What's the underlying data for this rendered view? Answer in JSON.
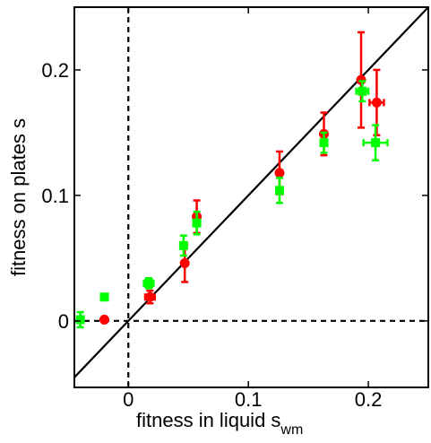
{
  "chart_data": {
    "type": "scatter",
    "xlabel": "fitness in liquid s",
    "xlabel_sub": "wm",
    "ylabel": "fitness on plates s",
    "xlim": [
      -0.045,
      0.25
    ],
    "ylim": [
      -0.053,
      0.25
    ],
    "xticks": [
      0,
      0.1,
      0.2
    ],
    "yticks": [
      0,
      0.1,
      0.2
    ],
    "xtick_labels": [
      "0",
      "0.1",
      "0.2"
    ],
    "ytick_labels": [
      "0",
      "0.1",
      "0.2"
    ],
    "grid": false,
    "reference_lines": [
      {
        "kind": "diagonal",
        "style": "solid"
      },
      {
        "kind": "vertical",
        "at": 0,
        "style": "dashed"
      },
      {
        "kind": "horizontal",
        "at": 0,
        "style": "dashed"
      }
    ],
    "series": [
      {
        "color": "#ff0000",
        "marker": "circle",
        "points": [
          {
            "x": -0.02,
            "y": 0.001,
            "xerr": 0.0,
            "yerr": 0.0
          },
          {
            "x": 0.018,
            "y": 0.019,
            "xerr": 0.004,
            "yerr": 0.005
          },
          {
            "x": 0.047,
            "y": 0.046,
            "xerr": 0.0,
            "yerr": 0.015
          },
          {
            "x": 0.057,
            "y": 0.083,
            "xerr": 0.0,
            "yerr": 0.013
          },
          {
            "x": 0.126,
            "y": 0.118,
            "xerr": 0.0,
            "yerr": 0.017
          },
          {
            "x": 0.163,
            "y": 0.149,
            "xerr": 0.0,
            "yerr": 0.017
          },
          {
            "x": 0.194,
            "y": 0.192,
            "xerr": 0.0,
            "yerr": 0.038
          },
          {
            "x": 0.207,
            "y": 0.174,
            "xerr": 0.006,
            "yerr": 0.026
          }
        ]
      },
      {
        "color": "#00ff00",
        "marker": "square",
        "points": [
          {
            "x": -0.04,
            "y": 0.001,
            "xerr": 0.002,
            "yerr": 0.006
          },
          {
            "x": -0.02,
            "y": 0.019,
            "xerr": 0.0,
            "yerr": 0.0
          },
          {
            "x": 0.017,
            "y": 0.03,
            "xerr": 0.004,
            "yerr": 0.004
          },
          {
            "x": 0.046,
            "y": 0.06,
            "xerr": 0.0,
            "yerr": 0.008
          },
          {
            "x": 0.057,
            "y": 0.078,
            "xerr": 0.0,
            "yerr": 0.009
          },
          {
            "x": 0.126,
            "y": 0.104,
            "xerr": 0.0,
            "yerr": 0.01
          },
          {
            "x": 0.163,
            "y": 0.142,
            "xerr": 0.0,
            "yerr": 0.008
          },
          {
            "x": 0.195,
            "y": 0.183,
            "xerr": 0.005,
            "yerr": 0.008
          },
          {
            "x": 0.206,
            "y": 0.142,
            "xerr": 0.01,
            "yerr": 0.014
          }
        ]
      }
    ]
  }
}
